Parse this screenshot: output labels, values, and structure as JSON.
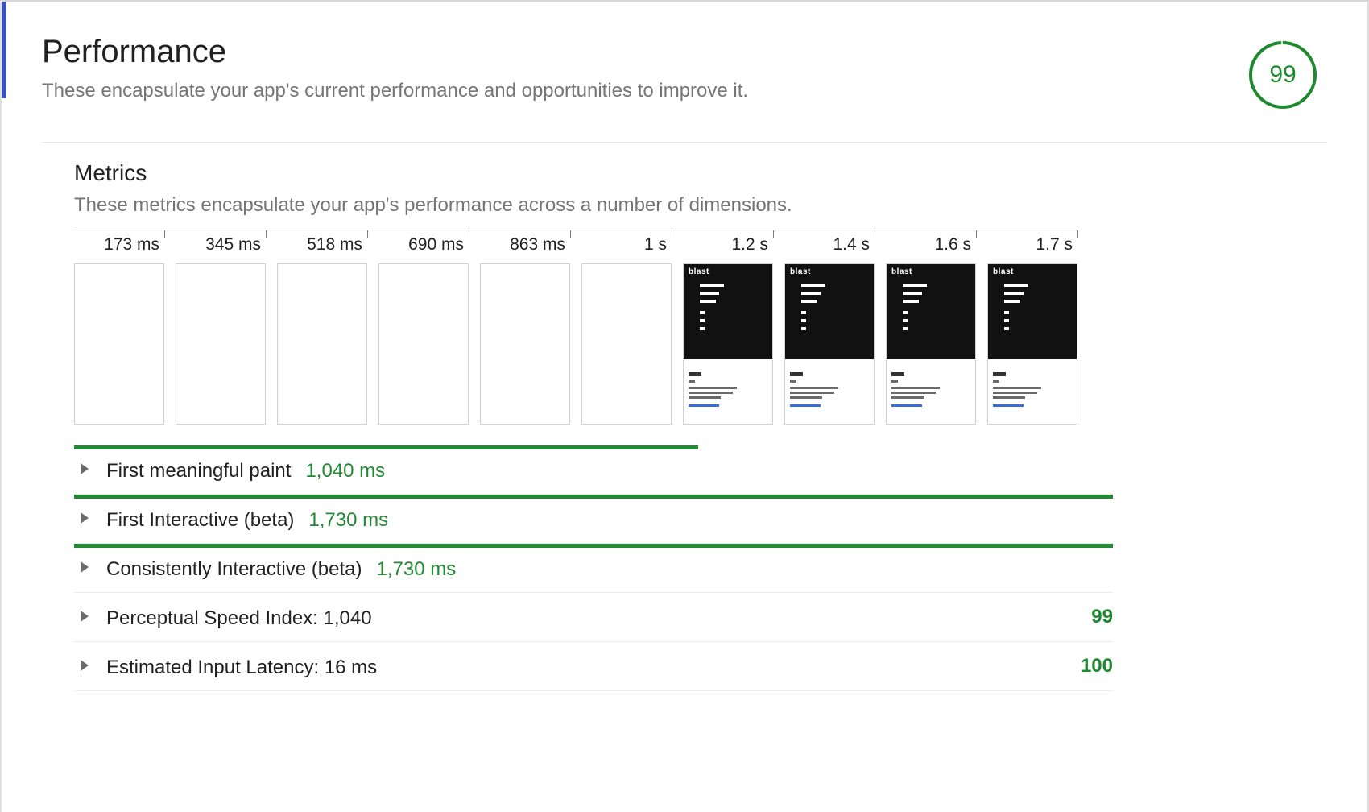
{
  "colors": {
    "green_primary": "#1e8a2f",
    "green_bar": "#228a33",
    "accent_blue": "#3d50b4",
    "text_primary": "#212121",
    "text_secondary": "#757575",
    "border_light": "#e6e6e6",
    "frame_border": "#d0d0d0",
    "arrow": "#6a6a6a"
  },
  "header": {
    "title": "Performance",
    "subtitle": "These encapsulate your app's current performance and opportunities to improve it.",
    "score": "99",
    "score_ring": {
      "radius": 40,
      "stroke_width": 4,
      "track_color": "#e6e6e6",
      "progress_color": "#1e8a2f",
      "percent": 99
    }
  },
  "metrics": {
    "title": "Metrics",
    "subtitle": "These metrics encapsulate your app's performance across a number of dimensions.",
    "timeline": {
      "max_ms": 1730,
      "ticks": [
        {
          "label": "173 ms",
          "ms": 173
        },
        {
          "label": "345 ms",
          "ms": 345
        },
        {
          "label": "518 ms",
          "ms": 518
        },
        {
          "label": "690 ms",
          "ms": 690
        },
        {
          "label": "863 ms",
          "ms": 863
        },
        {
          "label": "1 s",
          "ms": 1000
        },
        {
          "label": "1.2 s",
          "ms": 1200
        },
        {
          "label": "1.4 s",
          "ms": 1400
        },
        {
          "label": "1.6 s",
          "ms": 1600
        },
        {
          "label": "1.7 s",
          "ms": 1730
        }
      ]
    },
    "filmstrip": {
      "frames": 10,
      "first_content_frame_index": 6
    }
  },
  "audits": [
    {
      "label": "First meaningful paint",
      "value": "1,040 ms",
      "bar_percent": 60.1,
      "bar_color": "#228a33",
      "show_bar": true,
      "right_score": null
    },
    {
      "label": "First Interactive (beta)",
      "value": "1,730 ms",
      "bar_percent": 100,
      "bar_color": "#228a33",
      "show_bar": true,
      "right_score": null
    },
    {
      "label": "Consistently Interactive (beta)",
      "value": "1,730 ms",
      "bar_percent": 100,
      "bar_color": "#228a33",
      "show_bar": true,
      "right_score": null
    },
    {
      "label": "Perceptual Speed Index: 1,040",
      "value": null,
      "show_bar": false,
      "right_score": "99"
    },
    {
      "label": "Estimated Input Latency: 16 ms",
      "value": null,
      "show_bar": false,
      "right_score": "100"
    }
  ]
}
